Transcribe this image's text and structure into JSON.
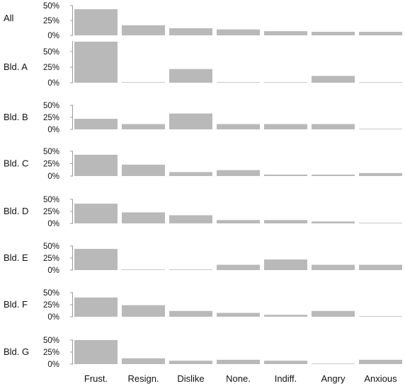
{
  "chart_data": {
    "type": "bar",
    "layout": "small-multiples",
    "categories": [
      "Frust.",
      "Resign.",
      "Dislike",
      "None.",
      "Indiff.",
      "Angry",
      "Anxious"
    ],
    "bar_color": "#b9b9b9",
    "axis_color": "#9a9a9a",
    "panels": [
      {
        "name": "All",
        "ylim": [
          0,
          50
        ],
        "ticks": [
          "50%",
          "25%",
          "0%"
        ],
        "tick_values": [
          50,
          25,
          0
        ],
        "values": [
          44,
          17,
          12,
          10,
          7,
          6,
          6
        ]
      },
      {
        "name": "Bld. A",
        "ylim": [
          0,
          67
        ],
        "ticks": [
          "50%",
          "25%",
          "0%"
        ],
        "tick_values": [
          50,
          25,
          0
        ],
        "values": [
          66,
          0,
          22,
          0,
          0,
          11,
          0
        ]
      },
      {
        "name": "Bld. B",
        "ylim": [
          0,
          50
        ],
        "ticks": [
          "50%",
          "25%",
          "0%"
        ],
        "tick_values": [
          50,
          25,
          0
        ],
        "values": [
          22,
          11,
          33,
          11,
          11,
          11,
          0
        ]
      },
      {
        "name": "Bld. C",
        "ylim": [
          0,
          50
        ],
        "ticks": [
          "50%",
          "25%",
          "0%"
        ],
        "tick_values": [
          50,
          25,
          0
        ],
        "values": [
          43,
          23,
          8,
          12,
          3,
          3,
          6
        ]
      },
      {
        "name": "Bld. D",
        "ylim": [
          0,
          50
        ],
        "ticks": [
          "50%",
          "25%",
          "0%"
        ],
        "tick_values": [
          50,
          25,
          0
        ],
        "values": [
          41,
          23,
          17,
          7,
          7,
          4,
          0
        ]
      },
      {
        "name": "Bld. E",
        "ylim": [
          0,
          50
        ],
        "ticks": [
          "50%",
          "25%",
          "0%"
        ],
        "tick_values": [
          50,
          25,
          0
        ],
        "values": [
          44,
          0,
          0,
          11,
          22,
          11,
          11
        ]
      },
      {
        "name": "Bld. F",
        "ylim": [
          0,
          50
        ],
        "ticks": [
          "50%",
          "25%",
          "0%"
        ],
        "tick_values": [
          50,
          25,
          0
        ],
        "values": [
          40,
          24,
          12,
          8,
          4,
          12,
          0
        ]
      },
      {
        "name": "Bld. G",
        "ylim": [
          0,
          50
        ],
        "ticks": [
          "50%",
          "25%",
          "0%"
        ],
        "tick_values": [
          50,
          25,
          0
        ],
        "values": [
          50,
          12,
          7,
          9,
          7,
          0,
          9
        ]
      }
    ]
  }
}
